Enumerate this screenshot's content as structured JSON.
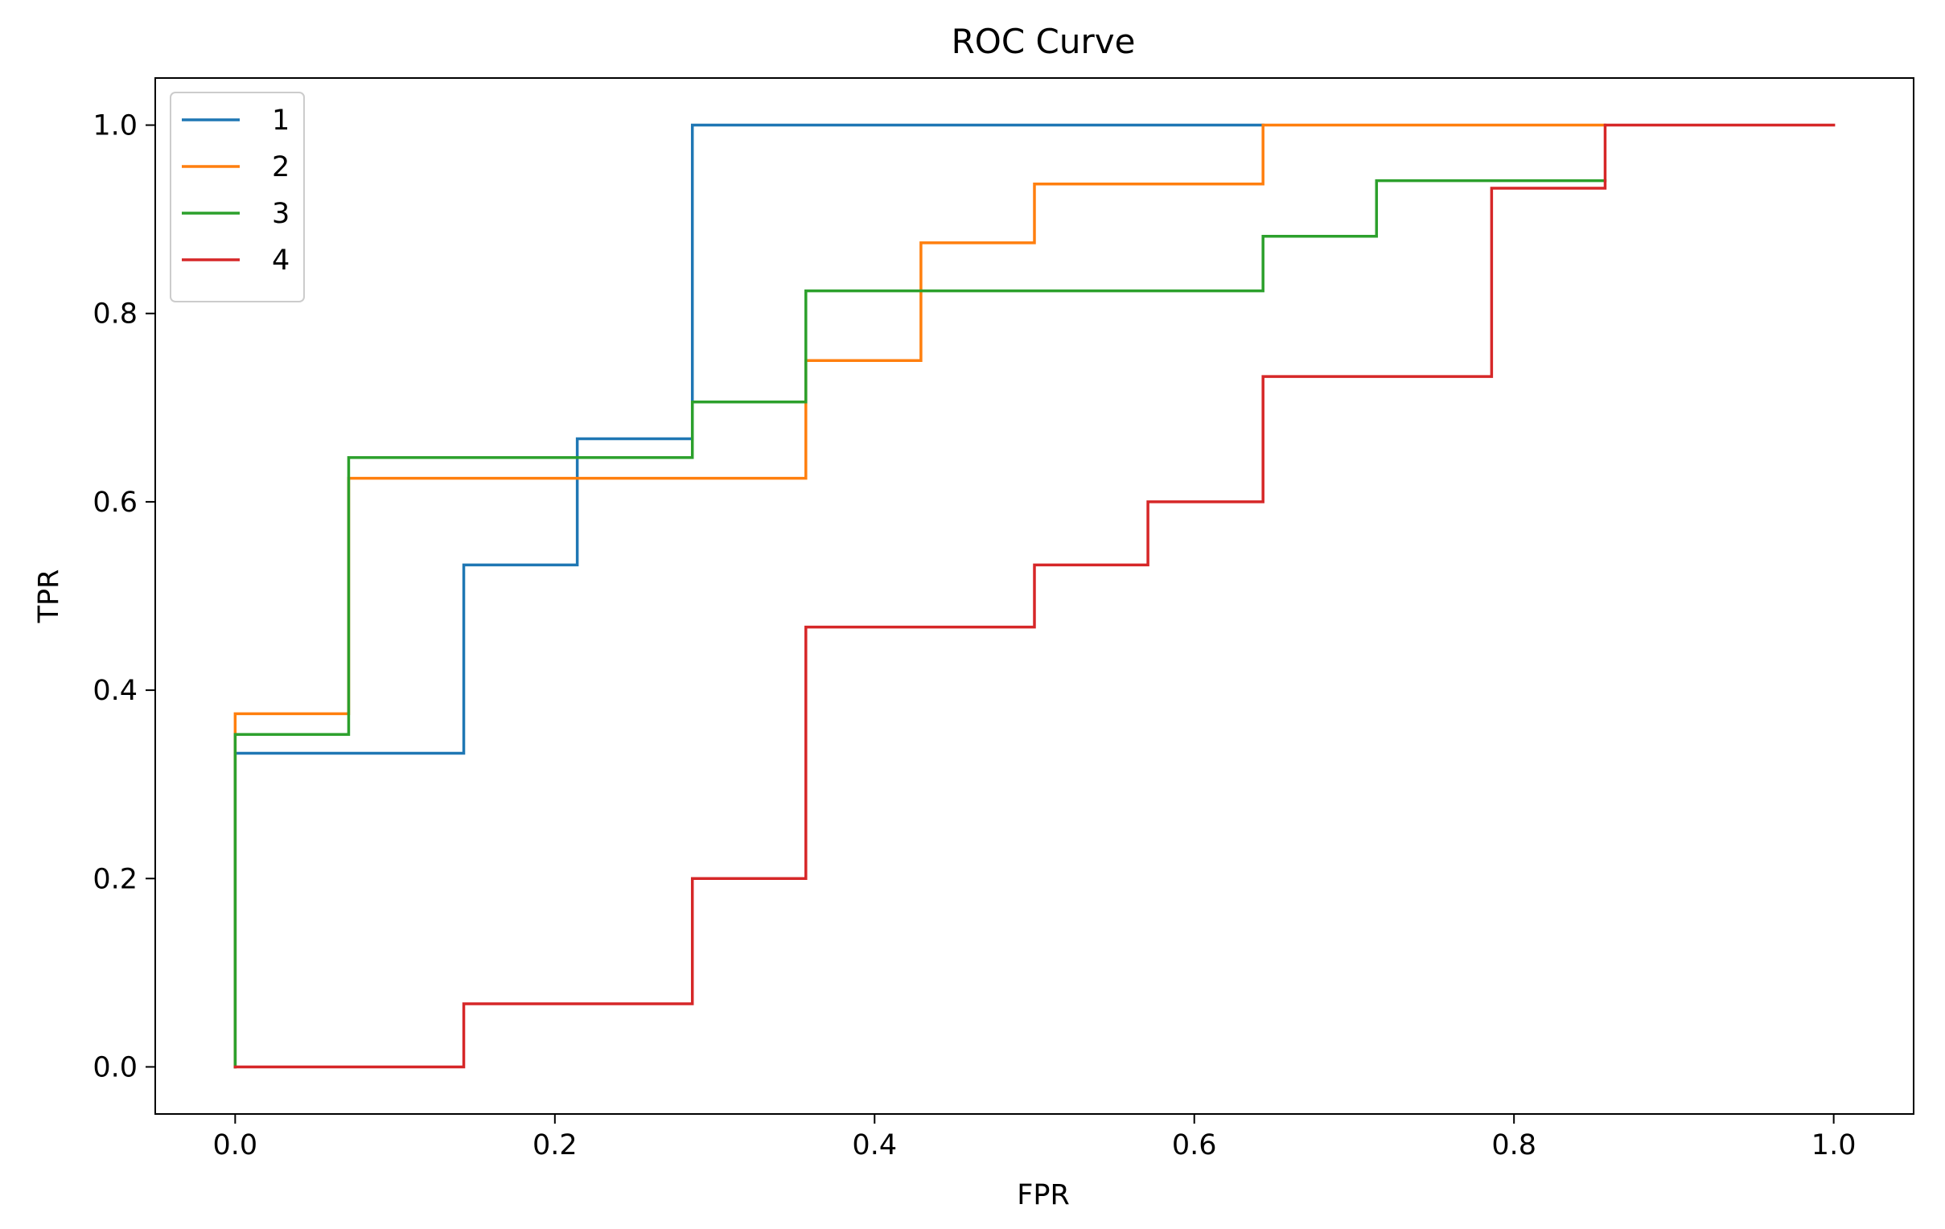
{
  "chart_data": {
    "type": "line",
    "step": true,
    "title": "ROC Curve",
    "xlabel": "FPR",
    "ylabel": "TPR",
    "xlim": [
      -0.05,
      1.05
    ],
    "ylim": [
      -0.05,
      1.05
    ],
    "xticks": [
      0.0,
      0.2,
      0.4,
      0.6,
      0.8,
      1.0
    ],
    "xtick_labels": [
      "0.0",
      "0.2",
      "0.4",
      "0.6",
      "0.8",
      "1.0"
    ],
    "yticks": [
      0.0,
      0.2,
      0.4,
      0.6,
      0.8,
      1.0
    ],
    "ytick_labels": [
      "0.0",
      "0.2",
      "0.4",
      "0.6",
      "0.8",
      "1.0"
    ],
    "grid": false,
    "legend_position": "top-left",
    "series": [
      {
        "name": "1",
        "color": "#1f77b4",
        "points": [
          [
            0,
            0
          ],
          [
            0,
            0.333
          ],
          [
            0.143,
            0.333
          ],
          [
            0.143,
            0.533
          ],
          [
            0.214,
            0.533
          ],
          [
            0.214,
            0.667
          ],
          [
            0.286,
            0.667
          ],
          [
            0.286,
            1.0
          ],
          [
            0.643,
            1.0
          ]
        ]
      },
      {
        "name": "2",
        "color": "#ff7f0e",
        "points": [
          [
            0,
            0
          ],
          [
            0,
            0.375
          ],
          [
            0.071,
            0.375
          ],
          [
            0.071,
            0.625
          ],
          [
            0.357,
            0.625
          ],
          [
            0.357,
            0.75
          ],
          [
            0.429,
            0.75
          ],
          [
            0.429,
            0.875
          ],
          [
            0.5,
            0.875
          ],
          [
            0.5,
            0.9375
          ],
          [
            0.643,
            0.9375
          ],
          [
            0.643,
            1.0
          ],
          [
            0.857,
            1.0
          ]
        ]
      },
      {
        "name": "3",
        "color": "#2ca02c",
        "points": [
          [
            0,
            0
          ],
          [
            0,
            0.353
          ],
          [
            0.071,
            0.353
          ],
          [
            0.071,
            0.647
          ],
          [
            0.286,
            0.647
          ],
          [
            0.286,
            0.706
          ],
          [
            0.357,
            0.706
          ],
          [
            0.357,
            0.824
          ],
          [
            0.643,
            0.824
          ],
          [
            0.643,
            0.882
          ],
          [
            0.714,
            0.882
          ],
          [
            0.714,
            0.941
          ],
          [
            0.857,
            0.941
          ]
        ]
      },
      {
        "name": "4",
        "color": "#d62728",
        "points": [
          [
            0,
            0
          ],
          [
            0.143,
            0
          ],
          [
            0.143,
            0.067
          ],
          [
            0.286,
            0.067
          ],
          [
            0.286,
            0.2
          ],
          [
            0.357,
            0.2
          ],
          [
            0.357,
            0.467
          ],
          [
            0.5,
            0.467
          ],
          [
            0.5,
            0.533
          ],
          [
            0.571,
            0.533
          ],
          [
            0.571,
            0.6
          ],
          [
            0.643,
            0.6
          ],
          [
            0.643,
            0.733
          ],
          [
            0.786,
            0.733
          ],
          [
            0.786,
            0.933
          ],
          [
            0.857,
            0.933
          ],
          [
            0.857,
            1.0
          ],
          [
            1.0,
            1.0
          ]
        ]
      }
    ]
  }
}
